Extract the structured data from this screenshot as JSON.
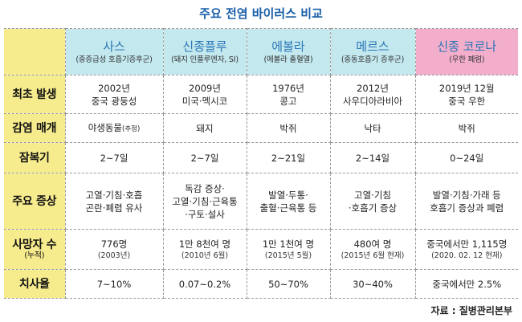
{
  "title": "주요 전염 바이러스 비교",
  "columns": [
    {
      "name": "사스",
      "sub": "(중증급성 호흡기증후군)"
    },
    {
      "name": "신종플루",
      "sub": "(돼지 인플루엔자, SI)"
    },
    {
      "name": "에볼라",
      "sub": "(에볼라 출혈열)"
    },
    {
      "name": "메르스",
      "sub": "(중동호흡기 증후군)"
    },
    {
      "name": "신종 코로나",
      "sub": "(우한 폐렴)"
    }
  ],
  "rows": {
    "first_outbreak": {
      "label": "최초 발생",
      "cells": [
        [
          "2002년",
          "중국 광둥성"
        ],
        [
          "2009년",
          "미국‧멕시코"
        ],
        [
          "1976년",
          "콩고"
        ],
        [
          "2012년",
          "사우디아라비아"
        ],
        [
          "2019년 12월",
          "중국 우한"
        ]
      ]
    },
    "vector": {
      "label": "감염 매개",
      "cells": [
        "야생동물",
        "돼지",
        "박쥐",
        "낙타",
        "박쥐"
      ],
      "note0": "(추정)"
    },
    "incubation": {
      "label": "잠복기",
      "cells": [
        "2~7일",
        "2~7일",
        "2~21일",
        "2~14일",
        "0~24일"
      ]
    },
    "symptoms": {
      "label": "주요 증상",
      "cells": [
        [
          "고열‧기침‧호흡",
          "곤란‧폐렴 유사"
        ],
        [
          "독감 증상‧",
          "고열‧기침‧근육통",
          "‧구토‧설사"
        ],
        [
          "발열‧두통‧",
          "출혈‧근육통 등"
        ],
        [
          "고열‧기침",
          "‧호흡기 증상"
        ],
        [
          "발열‧기침‧가래 등",
          "호흡기 증상과 폐렴"
        ]
      ]
    },
    "deaths": {
      "label": "사망자 수",
      "label_note": "(누적)",
      "cells": [
        [
          "776명",
          "(2003년)"
        ],
        [
          "1만 8천여 명",
          "(2010년 6월)"
        ],
        [
          "1만 1천여 명",
          "(2015년 5월)"
        ],
        [
          "480여 명",
          "(2015년 6월 현재)"
        ],
        [
          "중국에서만 1,115명",
          "(2020. 02. 12 현재)"
        ]
      ]
    },
    "fatality": {
      "label": "치사율",
      "cells": [
        "7~10%",
        "0.07~0.2%",
        "50~70%",
        "30~40%",
        "중국에서만 2.5%"
      ]
    }
  },
  "source": "자료 : 질병관리본부",
  "colors": {
    "label_bg": "#f6eb8d",
    "header_bg": "#c3e8ee",
    "header_highlight_bg": "#f3aecb",
    "header_text": "#2b76b6",
    "title": "#1a5fa8"
  }
}
